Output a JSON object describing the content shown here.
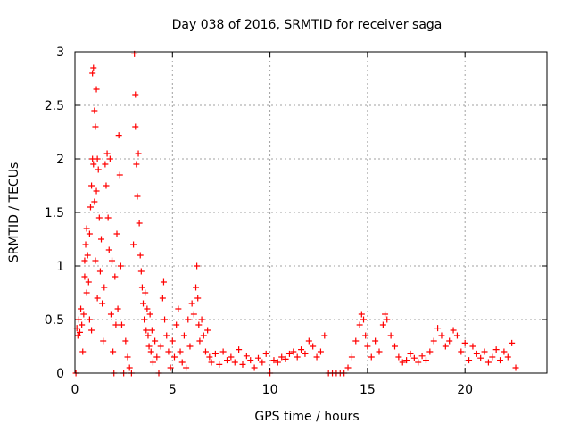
{
  "chart_data": {
    "type": "scatter",
    "title": "Day 038 of 2016, SRMTID for receiver saga",
    "xlabel": "GPS time / hours",
    "ylabel": "SRMTID / TECUs",
    "xlim": [
      0,
      24.2
    ],
    "ylim": [
      0,
      3
    ],
    "xticks": [
      0,
      5,
      10,
      15,
      20
    ],
    "xtick_labels": [
      "0",
      "5",
      "10",
      "15",
      "20"
    ],
    "yticks": [
      0,
      0.5,
      1,
      1.5,
      2,
      2.5,
      3
    ],
    "ytick_labels": [
      "0",
      "0.5",
      "1",
      "1.5",
      "2",
      "2.5",
      "3"
    ],
    "grid": true,
    "marker": "+",
    "series": [
      {
        "name": "SRMTID",
        "color": "#ff0000",
        "points": [
          [
            0.05,
            0.0
          ],
          [
            0.1,
            0.42
          ],
          [
            0.15,
            0.35
          ],
          [
            0.2,
            0.5
          ],
          [
            0.25,
            0.38
          ],
          [
            0.3,
            0.6
          ],
          [
            0.35,
            0.45
          ],
          [
            0.4,
            0.2
          ],
          [
            0.45,
            0.55
          ],
          [
            0.5,
            0.9
          ],
          [
            0.5,
            1.05
          ],
          [
            0.55,
            1.2
          ],
          [
            0.6,
            1.35
          ],
          [
            0.6,
            0.75
          ],
          [
            0.65,
            1.1
          ],
          [
            0.7,
            0.85
          ],
          [
            0.75,
            1.3
          ],
          [
            0.75,
            0.5
          ],
          [
            0.8,
            1.55
          ],
          [
            0.85,
            1.75
          ],
          [
            0.85,
            0.4
          ],
          [
            0.9,
            2.0
          ],
          [
            0.9,
            2.8
          ],
          [
            0.95,
            2.85
          ],
          [
            0.95,
            1.95
          ],
          [
            1.0,
            2.45
          ],
          [
            1.0,
            1.6
          ],
          [
            1.05,
            2.3
          ],
          [
            1.05,
            1.05
          ],
          [
            1.1,
            2.65
          ],
          [
            1.1,
            1.7
          ],
          [
            1.15,
            2.0
          ],
          [
            1.15,
            0.7
          ],
          [
            1.2,
            1.9
          ],
          [
            1.25,
            1.45
          ],
          [
            1.3,
            0.95
          ],
          [
            1.35,
            1.25
          ],
          [
            1.4,
            0.65
          ],
          [
            1.45,
            0.3
          ],
          [
            1.5,
            0.8
          ],
          [
            1.55,
            1.95
          ],
          [
            1.6,
            1.75
          ],
          [
            1.65,
            2.05
          ],
          [
            1.7,
            1.45
          ],
          [
            1.75,
            1.15
          ],
          [
            1.8,
            2.0
          ],
          [
            1.85,
            0.55
          ],
          [
            1.9,
            1.05
          ],
          [
            1.95,
            0.2
          ],
          [
            2.0,
            0.0
          ],
          [
            2.05,
            0.9
          ],
          [
            2.1,
            0.45
          ],
          [
            2.15,
            1.3
          ],
          [
            2.2,
            0.6
          ],
          [
            2.25,
            2.22
          ],
          [
            2.3,
            1.85
          ],
          [
            2.35,
            1.0
          ],
          [
            2.4,
            0.45
          ],
          [
            2.5,
            0.0
          ],
          [
            2.6,
            0.3
          ],
          [
            2.7,
            0.15
          ],
          [
            2.8,
            0.05
          ],
          [
            2.9,
            0.0
          ],
          [
            3.0,
            1.2
          ],
          [
            3.05,
            2.98
          ],
          [
            3.1,
            2.6
          ],
          [
            3.1,
            2.3
          ],
          [
            3.15,
            1.95
          ],
          [
            3.2,
            1.65
          ],
          [
            3.25,
            2.05
          ],
          [
            3.3,
            1.4
          ],
          [
            3.35,
            1.1
          ],
          [
            3.4,
            0.95
          ],
          [
            3.45,
            0.8
          ],
          [
            3.5,
            0.65
          ],
          [
            3.55,
            0.5
          ],
          [
            3.6,
            0.75
          ],
          [
            3.65,
            0.4
          ],
          [
            3.7,
            0.6
          ],
          [
            3.75,
            0.35
          ],
          [
            3.8,
            0.25
          ],
          [
            3.85,
            0.55
          ],
          [
            3.9,
            0.2
          ],
          [
            3.95,
            0.4
          ],
          [
            4.0,
            0.1
          ],
          [
            4.1,
            0.3
          ],
          [
            4.2,
            0.15
          ],
          [
            4.3,
            0.0
          ],
          [
            4.4,
            0.25
          ],
          [
            4.5,
            0.7
          ],
          [
            4.55,
            0.85
          ],
          [
            4.6,
            0.5
          ],
          [
            4.7,
            0.35
          ],
          [
            4.8,
            0.2
          ],
          [
            4.9,
            0.05
          ],
          [
            5.0,
            0.3
          ],
          [
            5.1,
            0.15
          ],
          [
            5.2,
            0.45
          ],
          [
            5.3,
            0.6
          ],
          [
            5.4,
            0.2
          ],
          [
            5.5,
            0.1
          ],
          [
            5.6,
            0.35
          ],
          [
            5.7,
            0.05
          ],
          [
            5.8,
            0.5
          ],
          [
            5.9,
            0.25
          ],
          [
            6.0,
            0.65
          ],
          [
            6.1,
            0.55
          ],
          [
            6.2,
            0.8
          ],
          [
            6.25,
            1.0
          ],
          [
            6.3,
            0.7
          ],
          [
            6.35,
            0.45
          ],
          [
            6.4,
            0.3
          ],
          [
            6.5,
            0.5
          ],
          [
            6.6,
            0.35
          ],
          [
            6.7,
            0.2
          ],
          [
            6.8,
            0.4
          ],
          [
            6.9,
            0.15
          ],
          [
            7.0,
            0.1
          ],
          [
            7.2,
            0.18
          ],
          [
            7.4,
            0.08
          ],
          [
            7.6,
            0.2
          ],
          [
            7.8,
            0.12
          ],
          [
            8.0,
            0.15
          ],
          [
            8.2,
            0.1
          ],
          [
            8.4,
            0.22
          ],
          [
            8.6,
            0.08
          ],
          [
            8.8,
            0.16
          ],
          [
            9.0,
            0.12
          ],
          [
            9.2,
            0.05
          ],
          [
            9.4,
            0.14
          ],
          [
            9.6,
            0.1
          ],
          [
            9.8,
            0.18
          ],
          [
            10.0,
            0.0
          ],
          [
            10.2,
            0.12
          ],
          [
            10.4,
            0.1
          ],
          [
            10.6,
            0.15
          ],
          [
            10.8,
            0.13
          ],
          [
            11.0,
            0.18
          ],
          [
            11.2,
            0.2
          ],
          [
            11.4,
            0.15
          ],
          [
            11.6,
            0.22
          ],
          [
            11.8,
            0.18
          ],
          [
            12.0,
            0.3
          ],
          [
            12.2,
            0.25
          ],
          [
            12.4,
            0.15
          ],
          [
            12.6,
            0.2
          ],
          [
            12.8,
            0.35
          ],
          [
            13.0,
            0.0
          ],
          [
            13.2,
            0.0
          ],
          [
            13.4,
            0.0
          ],
          [
            13.6,
            0.0
          ],
          [
            13.8,
            0.0
          ],
          [
            14.0,
            0.05
          ],
          [
            14.2,
            0.15
          ],
          [
            14.4,
            0.3
          ],
          [
            14.6,
            0.45
          ],
          [
            14.7,
            0.55
          ],
          [
            14.8,
            0.5
          ],
          [
            14.9,
            0.35
          ],
          [
            15.0,
            0.25
          ],
          [
            15.2,
            0.15
          ],
          [
            15.4,
            0.3
          ],
          [
            15.6,
            0.2
          ],
          [
            15.8,
            0.45
          ],
          [
            15.9,
            0.55
          ],
          [
            16.0,
            0.5
          ],
          [
            16.2,
            0.35
          ],
          [
            16.4,
            0.25
          ],
          [
            16.6,
            0.15
          ],
          [
            16.8,
            0.1
          ],
          [
            17.0,
            0.12
          ],
          [
            17.2,
            0.18
          ],
          [
            17.4,
            0.14
          ],
          [
            17.6,
            0.1
          ],
          [
            17.8,
            0.16
          ],
          [
            18.0,
            0.12
          ],
          [
            18.2,
            0.2
          ],
          [
            18.4,
            0.3
          ],
          [
            18.6,
            0.42
          ],
          [
            18.8,
            0.35
          ],
          [
            19.0,
            0.25
          ],
          [
            19.2,
            0.3
          ],
          [
            19.4,
            0.4
          ],
          [
            19.6,
            0.35
          ],
          [
            19.8,
            0.2
          ],
          [
            20.0,
            0.28
          ],
          [
            20.2,
            0.12
          ],
          [
            20.4,
            0.25
          ],
          [
            20.6,
            0.18
          ],
          [
            20.8,
            0.14
          ],
          [
            21.0,
            0.2
          ],
          [
            21.2,
            0.1
          ],
          [
            21.4,
            0.15
          ],
          [
            21.6,
            0.22
          ],
          [
            21.8,
            0.12
          ],
          [
            22.0,
            0.2
          ],
          [
            22.2,
            0.15
          ],
          [
            22.4,
            0.28
          ],
          [
            22.6,
            0.05
          ]
        ]
      }
    ]
  }
}
